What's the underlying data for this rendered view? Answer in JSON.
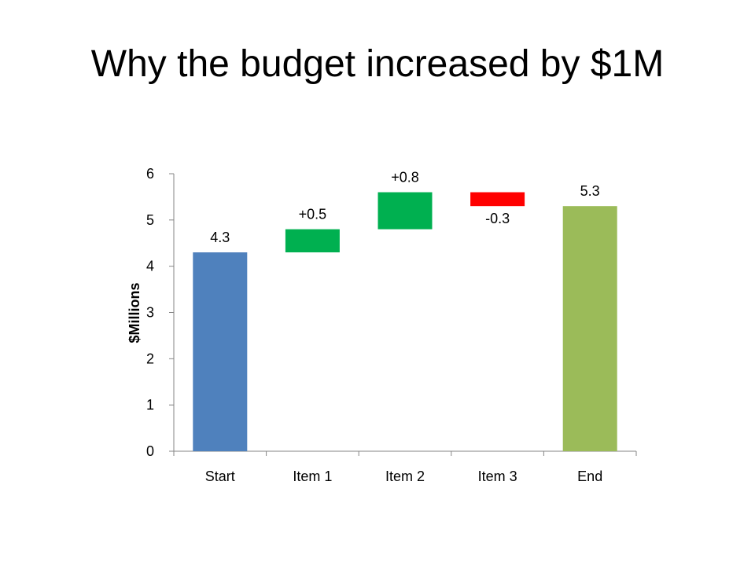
{
  "slide": {
    "title": "Why the budget increased by $1M"
  },
  "chart_data": {
    "type": "bar",
    "subtype": "waterfall",
    "title": "Why the budget increased by $1M",
    "xlabel": "",
    "ylabel": "$Millions",
    "ylim": [
      0,
      6
    ],
    "yticks": [
      "0",
      "1",
      "2",
      "3",
      "4",
      "5",
      "6"
    ],
    "grid": false,
    "legend": "none",
    "categories": [
      "Start",
      "Item 1",
      "Item 2",
      "Item 3",
      "End"
    ],
    "bars": [
      {
        "category": "Start",
        "base": 0,
        "value": 4.3,
        "top": 4.3,
        "label": "4.3",
        "label_position": "above",
        "color": "#4F81BD"
      },
      {
        "category": "Item 1",
        "base": 4.3,
        "value": 0.5,
        "top": 4.8,
        "label": "+0.5",
        "label_position": "above",
        "color": "#00B050"
      },
      {
        "category": "Item 2",
        "base": 4.8,
        "value": 0.8,
        "top": 5.6,
        "label": "+0.8",
        "label_position": "above",
        "color": "#00B050"
      },
      {
        "category": "Item 3",
        "base": 5.6,
        "value": -0.3,
        "top": 5.3,
        "label": "-0.3",
        "label_position": "below",
        "color": "#FF0000"
      },
      {
        "category": "End",
        "base": 0,
        "value": 5.3,
        "top": 5.3,
        "label": "5.3",
        "label_position": "above",
        "color": "#9BBB59"
      }
    ]
  }
}
